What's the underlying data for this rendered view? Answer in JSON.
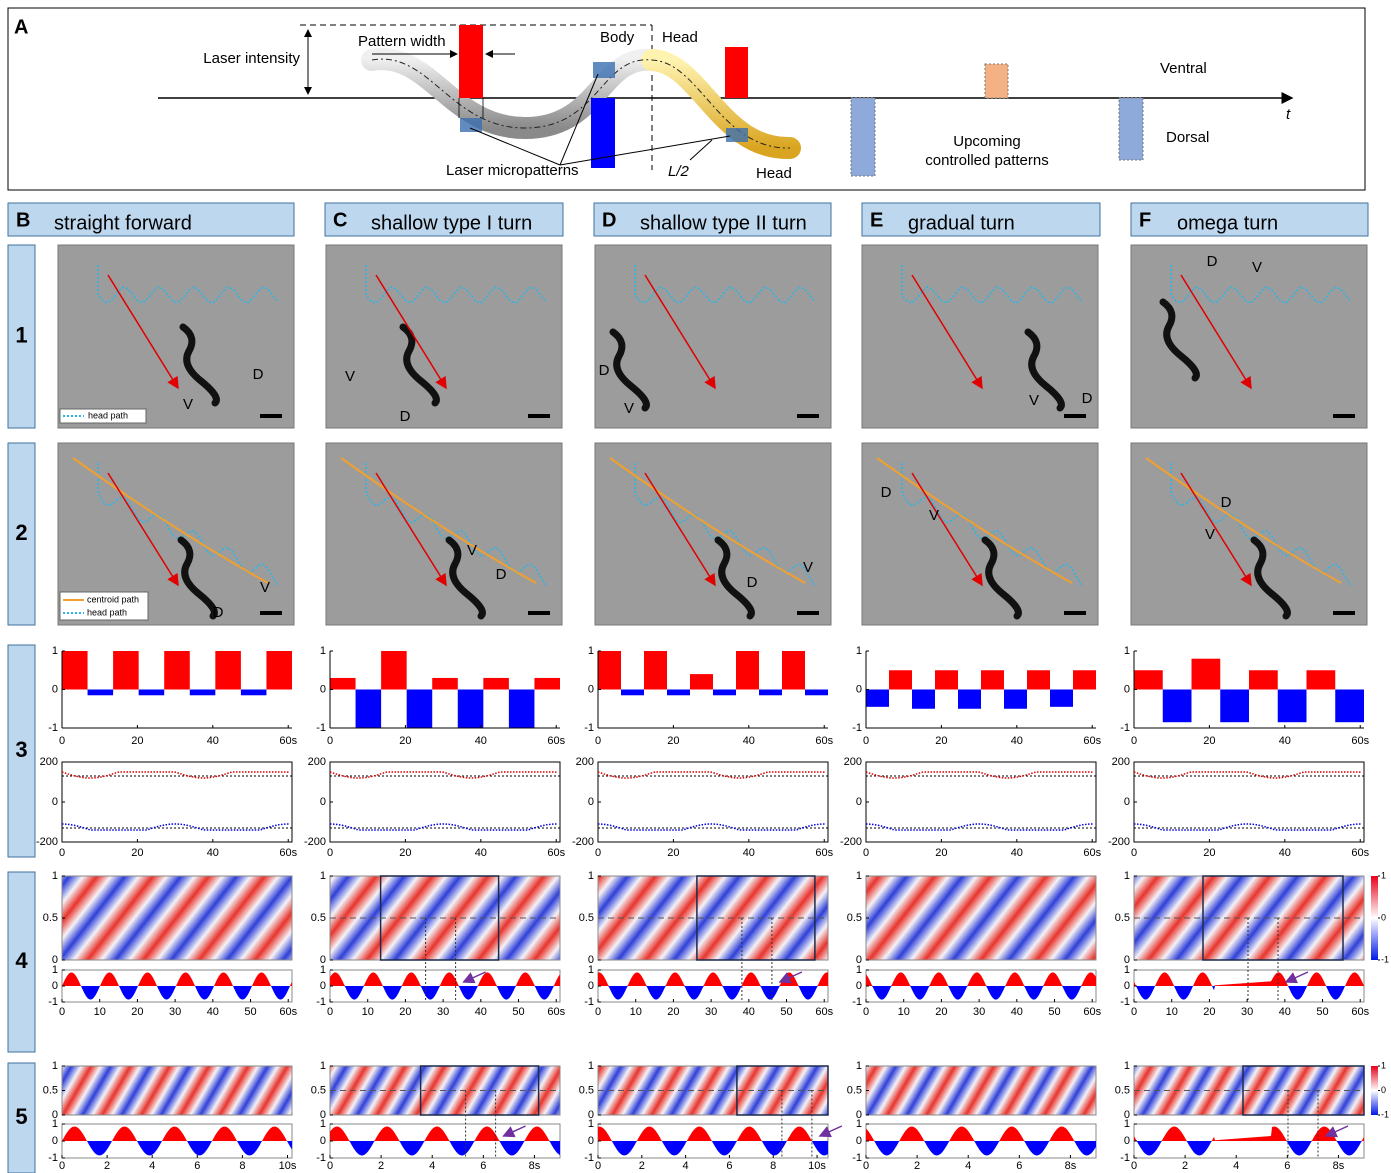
{
  "panel_a": {
    "letter": "A",
    "labels": {
      "laser_intensity": "Laser intensity",
      "pattern_width": "Pattern width",
      "body": "Body",
      "head_top": "Head",
      "laser_micropatterns": "Laser micropatterns",
      "half_length": "L/2",
      "head_bottom": "Head",
      "ventral": "Ventral",
      "dorsal": "Dorsal",
      "upcoming": "Upcoming",
      "controlled_patterns": "controlled patterns",
      "time_axis": "t"
    }
  },
  "row_labels": [
    "1",
    "2",
    "3",
    "4",
    "5"
  ],
  "ventral_color": "#ff0000",
  "dorsal_color": "#0000ff",
  "pattern_ylim": [
    -1,
    1
  ],
  "pattern_yticks": [
    1,
    0,
    -1
  ],
  "angle_ylim": [
    -200,
    200
  ],
  "angle_yticks": [
    200,
    0,
    -200
  ],
  "heatmap_ylim": [
    0,
    1
  ],
  "heatmap_yticks": [
    1,
    0.5,
    0
  ],
  "curve_ylim": [
    -1,
    1
  ],
  "curve_yticks": [
    1,
    0,
    -1
  ],
  "colorbar_ticks": [
    1,
    0,
    -1
  ],
  "columns": [
    {
      "letter": "B",
      "title": "straight forward",
      "image_labels": [
        [
          "V",
          "D"
        ],
        [
          "V",
          "D"
        ]
      ],
      "row1_legend": [
        "head path"
      ],
      "row2_legend": [
        "centroid path",
        "head path"
      ],
      "patterns": [
        1,
        -0.15,
        1,
        -0.15,
        1,
        -0.15,
        1,
        -0.15,
        1
      ],
      "row3_xlim": [
        0,
        61
      ],
      "row3_xticks": [
        0,
        20,
        40,
        {
          "value": 60,
          "label": "60s"
        }
      ],
      "row4_xlim": [
        0,
        61
      ],
      "row4_xticks": [
        0,
        10,
        20,
        30,
        40,
        50,
        {
          "value": 60,
          "label": "60s"
        }
      ],
      "row5_xlim": [
        0,
        10.2
      ],
      "row5_xticks": [
        0,
        2,
        4,
        6,
        8,
        {
          "value": 10,
          "label": "10s"
        }
      ]
    },
    {
      "letter": "C",
      "title": "shallow type I turn",
      "image_labels": [
        [
          "V",
          "D"
        ],
        [
          "V",
          "D"
        ]
      ],
      "patterns": [
        0.3,
        -1,
        1,
        -1,
        0.3,
        -1,
        0.3,
        -1,
        0.3
      ],
      "row3_xlim": [
        0,
        61
      ],
      "row3_xticks": [
        0,
        20,
        40,
        {
          "value": 60,
          "label": "60s"
        }
      ],
      "row4_xlim": [
        0,
        61
      ],
      "row4_xticks": [
        0,
        10,
        20,
        30,
        40,
        50,
        {
          "value": 60,
          "label": "60s"
        }
      ],
      "row5_xlim": [
        0,
        9
      ],
      "row5_xticks": [
        0,
        2,
        4,
        6,
        {
          "value": 8,
          "label": "8s"
        }
      ]
    },
    {
      "letter": "D",
      "title": "shallow type II turn",
      "image_labels": [
        [
          "D",
          "V"
        ],
        [
          "V",
          "D"
        ]
      ],
      "patterns": [
        1,
        -0.15,
        1,
        -0.15,
        0.4,
        -0.15,
        1,
        -0.15,
        1,
        -0.15
      ],
      "row3_xlim": [
        0,
        61
      ],
      "row3_xticks": [
        0,
        20,
        40,
        {
          "value": 60,
          "label": "60s"
        }
      ],
      "row4_xlim": [
        0,
        61
      ],
      "row4_xticks": [
        0,
        10,
        20,
        30,
        40,
        50,
        {
          "value": 60,
          "label": "60s"
        }
      ],
      "row5_xlim": [
        0,
        10.5
      ],
      "row5_xticks": [
        0,
        2,
        4,
        6,
        8,
        {
          "value": 10,
          "label": "10s"
        }
      ]
    },
    {
      "letter": "E",
      "title": "gradual turn",
      "image_labels": [
        [
          "V",
          "D"
        ],
        [
          "D",
          "V"
        ]
      ],
      "patterns": [
        -0.45,
        0.5,
        -0.5,
        0.5,
        -0.5,
        0.5,
        -0.5,
        0.5,
        -0.45,
        0.5
      ],
      "row3_xlim": [
        0,
        61
      ],
      "row3_xticks": [
        0,
        20,
        40,
        {
          "value": 60,
          "label": "60s"
        }
      ],
      "row4_xlim": [
        0,
        61
      ],
      "row4_xticks": [
        0,
        10,
        20,
        30,
        40,
        50,
        {
          "value": 60,
          "label": "60s"
        }
      ],
      "row5_xlim": [
        0,
        9
      ],
      "row5_xticks": [
        0,
        2,
        4,
        6,
        {
          "value": 8,
          "label": "8s"
        }
      ]
    },
    {
      "letter": "F",
      "title": "omega turn",
      "image_labels": [
        [
          "D",
          "V"
        ],
        [
          "D",
          "V"
        ]
      ],
      "colorbar": true,
      "patterns": [
        0.5,
        -0.85,
        0.8,
        -0.85,
        0.5,
        -0.85,
        0.5,
        -0.85
      ],
      "row3_xlim": [
        0,
        61
      ],
      "row3_xticks": [
        0,
        20,
        40,
        {
          "value": 60,
          "label": "60s"
        }
      ],
      "row4_xlim": [
        0,
        61
      ],
      "row4_xticks": [
        0,
        10,
        20,
        30,
        40,
        50,
        {
          "value": 60,
          "label": "60s"
        }
      ],
      "row5_xlim": [
        0,
        9
      ],
      "row5_xticks": [
        0,
        2,
        4,
        6,
        {
          "value": 8,
          "label": "8s"
        }
      ]
    }
  ]
}
